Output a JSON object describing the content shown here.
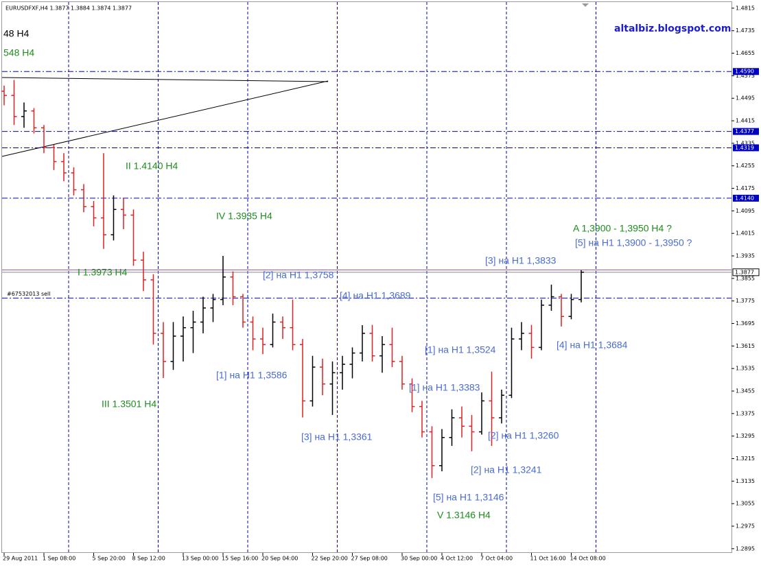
{
  "chart_data": {
    "type": "ohlc",
    "title": "EURUSDFXF,H4  1.3877 1.3884 1.3874 1.3877",
    "watermark": "altalbiz.blogspot.com",
    "watermark_color": "#1c1cd0",
    "categories": [
      "29 Aug 2011",
      null,
      null,
      null,
      "1 Sep 08:00",
      null,
      null,
      null,
      null,
      "5 Sep 20:00",
      null,
      null,
      null,
      "8 Sep 12:00",
      null,
      null,
      null,
      null,
      "13 Sep 00:00",
      null,
      null,
      null,
      "15 Sep 16:00",
      null,
      null,
      null,
      "20 Sep 04:00",
      null,
      null,
      null,
      null,
      "22 Sep 20:00",
      null,
      null,
      null,
      "27 Sep 08:00",
      null,
      null,
      null,
      null,
      "30 Sep 00:00",
      null,
      null,
      null,
      "4 Oct 12:00",
      null,
      null,
      null,
      "7 Oct 04:00",
      null,
      null,
      null,
      null,
      "11 Oct 16:00",
      null,
      null,
      null,
      "14 Oct 08:00",
      null
    ],
    "open": [
      1.452,
      1.4505,
      1.443,
      1.445,
      1.439,
      1.432,
      1.427,
      1.423,
      1.417,
      1.411,
      1.407,
      1.401,
      1.41,
      1.408,
      1.392,
      1.385,
      1.366,
      1.356,
      1.365,
      1.368,
      1.37,
      1.375,
      1.378,
      1.386,
      1.379,
      1.37,
      1.364,
      1.362,
      1.37,
      1.368,
      1.362,
      1.342,
      1.354,
      1.348,
      1.352,
      1.355,
      1.359,
      1.366,
      1.358,
      1.362,
      1.356,
      1.348,
      1.34,
      1.331,
      1.319,
      1.329,
      1.336,
      1.333,
      1.331,
      1.342,
      1.336,
      1.344,
      1.364,
      1.366,
      1.361,
      1.376,
      1.379,
      1.372,
      1.378
    ],
    "high": [
      1.454,
      1.456,
      1.448,
      1.446,
      1.44,
      1.433,
      1.43,
      1.425,
      1.419,
      1.413,
      1.43,
      1.415,
      1.414,
      1.41,
      1.395,
      1.387,
      1.37,
      1.37,
      1.372,
      1.374,
      1.379,
      1.38,
      1.3935,
      1.388,
      1.38,
      1.372,
      1.368,
      1.373,
      1.372,
      1.378,
      1.364,
      1.358,
      1.357,
      1.356,
      1.358,
      1.361,
      1.3689,
      1.369,
      1.365,
      1.368,
      1.358,
      1.35,
      1.342,
      1.333,
      1.332,
      1.339,
      1.34,
      1.337,
      1.345,
      1.3524,
      1.346,
      1.368,
      1.37,
      1.369,
      1.378,
      1.3833,
      1.38,
      1.38,
      1.3884
    ],
    "low": [
      1.447,
      1.44,
      1.439,
      1.437,
      1.43,
      1.424,
      1.42,
      1.415,
      1.409,
      1.404,
      1.396,
      1.399,
      1.403,
      1.39,
      1.381,
      1.362,
      1.3501,
      1.353,
      1.356,
      1.359,
      1.366,
      1.37,
      1.376,
      1.376,
      1.368,
      1.36,
      1.3586,
      1.361,
      1.364,
      1.36,
      1.3361,
      1.34,
      1.344,
      1.337,
      1.346,
      1.35,
      1.356,
      1.356,
      1.352,
      1.354,
      1.346,
      1.338,
      1.329,
      1.3146,
      1.317,
      1.326,
      1.329,
      1.3241,
      1.33,
      1.326,
      1.334,
      1.343,
      1.36,
      1.357,
      1.36,
      1.374,
      1.3684,
      1.371,
      1.377
    ],
    "close": [
      1.4505,
      1.443,
      1.445,
      1.439,
      1.432,
      1.427,
      1.423,
      1.417,
      1.411,
      1.407,
      1.401,
      1.41,
      1.408,
      1.392,
      1.385,
      1.366,
      1.356,
      1.365,
      1.368,
      1.37,
      1.375,
      1.378,
      1.386,
      1.379,
      1.37,
      1.364,
      1.362,
      1.37,
      1.368,
      1.362,
      1.342,
      1.354,
      1.348,
      1.352,
      1.355,
      1.359,
      1.366,
      1.358,
      1.362,
      1.356,
      1.348,
      1.34,
      1.331,
      1.319,
      1.329,
      1.336,
      1.333,
      1.331,
      1.342,
      1.336,
      1.344,
      1.364,
      1.366,
      1.361,
      1.376,
      1.379,
      1.372,
      1.378,
      1.3877
    ],
    "up_color": "#000000",
    "down_color": "#e02020",
    "ylim": [
      1.288,
      1.4844
    ],
    "yticks": [
      1.4815,
      1.4735,
      1.4655,
      1.4575,
      1.4495,
      1.4415,
      1.4335,
      1.4255,
      1.4175,
      1.4095,
      1.4015,
      1.3935,
      1.3855,
      1.3775,
      1.3695,
      1.3615,
      1.3535,
      1.3455,
      1.3375,
      1.3295,
      1.3215,
      1.3135,
      1.3055,
      1.2975,
      1.2895
    ],
    "grid": true,
    "levels": [
      {
        "value": 1.459,
        "label": "1.4590"
      },
      1.4377,
      1.4319,
      {
        "value": 1.414,
        "label": "1.4140"
      }
    ],
    "level_color": "#0000c0",
    "current_price": 1.3877,
    "ask_price": 1.3885,
    "order_line": {
      "price": 1.3785,
      "text": "#67532013 sell"
    },
    "annotations": [
      {
        "text": "48 H4",
        "color": "#000000"
      },
      {
        "text": "548 H4",
        "color": "#1e8c1e"
      },
      {
        "text": "II 1.4140 H4",
        "color": "#1e8c1e"
      },
      {
        "text": "IV 1.3935 H4",
        "color": "#1e8c1e"
      },
      {
        "text": "I 1.3973 H4",
        "color": "#1e8c1e"
      },
      {
        "text": "III 1.3501 H4",
        "color": "#1e8c1e"
      },
      {
        "text": "V 1.3146 H4",
        "color": "#1e8c1e"
      },
      {
        "text": "A  1,3900 - 1,3950  H4 ?",
        "color": "#1e8c1e"
      },
      {
        "text": "[5] на H1 1,3900 - 1,3950 ?",
        "color": "#4a6cd4"
      },
      {
        "text": "[3] на H1 1,3833",
        "color": "#4a6cd4"
      },
      {
        "text": "[2] на H1 1,3758",
        "color": "#4a6cd4"
      },
      {
        "text": "[4] на H1 1,3689",
        "color": "#4a6cd4"
      },
      {
        "text": "[4] на H1 1,3684",
        "color": "#4a6cd4"
      },
      {
        "text": "[1] на H1 1,3524",
        "color": "#4a6cd4"
      },
      {
        "text": "[1] на H1 1,3586",
        "color": "#4a6cd4"
      },
      {
        "text": "[1] на H1 1,3383",
        "color": "#4a6cd4"
      },
      {
        "text": "[3] на H1 1,3361",
        "color": "#4a6cd4"
      },
      {
        "text": "[2] на H1 1,3260",
        "color": "#4a6cd4"
      },
      {
        "text": "[2] на H1 1,3241",
        "color": "#4a6cd4"
      },
      {
        "text": "[5] на H1 1,3146",
        "color": "#4a6cd4"
      }
    ]
  }
}
